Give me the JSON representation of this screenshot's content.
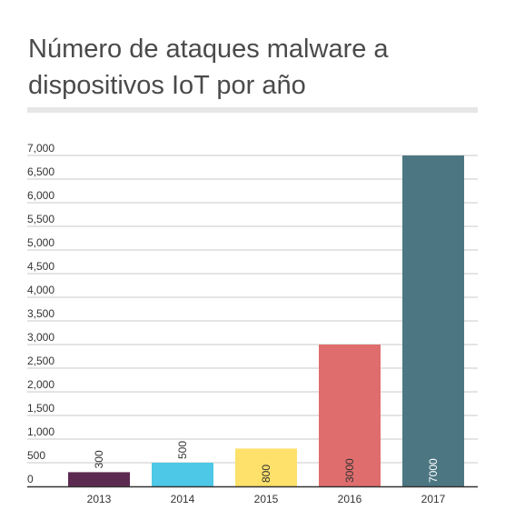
{
  "title": "Número de ataques malware a dispositivos IoT por año",
  "chart_data": {
    "type": "bar",
    "title": "Número de ataques malware a dispositivos IoT por año",
    "categories": [
      "2013",
      "2014",
      "2015",
      "2016",
      "2017"
    ],
    "values": [
      300,
      500,
      800,
      3000,
      7000
    ],
    "value_labels": [
      "300",
      "500",
      "800",
      "3000",
      "7000"
    ],
    "colors": [
      "#5c2a50",
      "#4dc8e6",
      "#fde16a",
      "#e06d6d",
      "#4c7782"
    ],
    "ylim": [
      0,
      7000
    ],
    "yticks": [
      "0",
      "500",
      "1,000",
      "1,500",
      "2,000",
      "2,500",
      "3,000",
      "3,500",
      "4,000",
      "4,500",
      "5,000",
      "5,500",
      "6,000",
      "6,500",
      "7,000"
    ],
    "grid": true,
    "xlabel": "",
    "ylabel": ""
  }
}
